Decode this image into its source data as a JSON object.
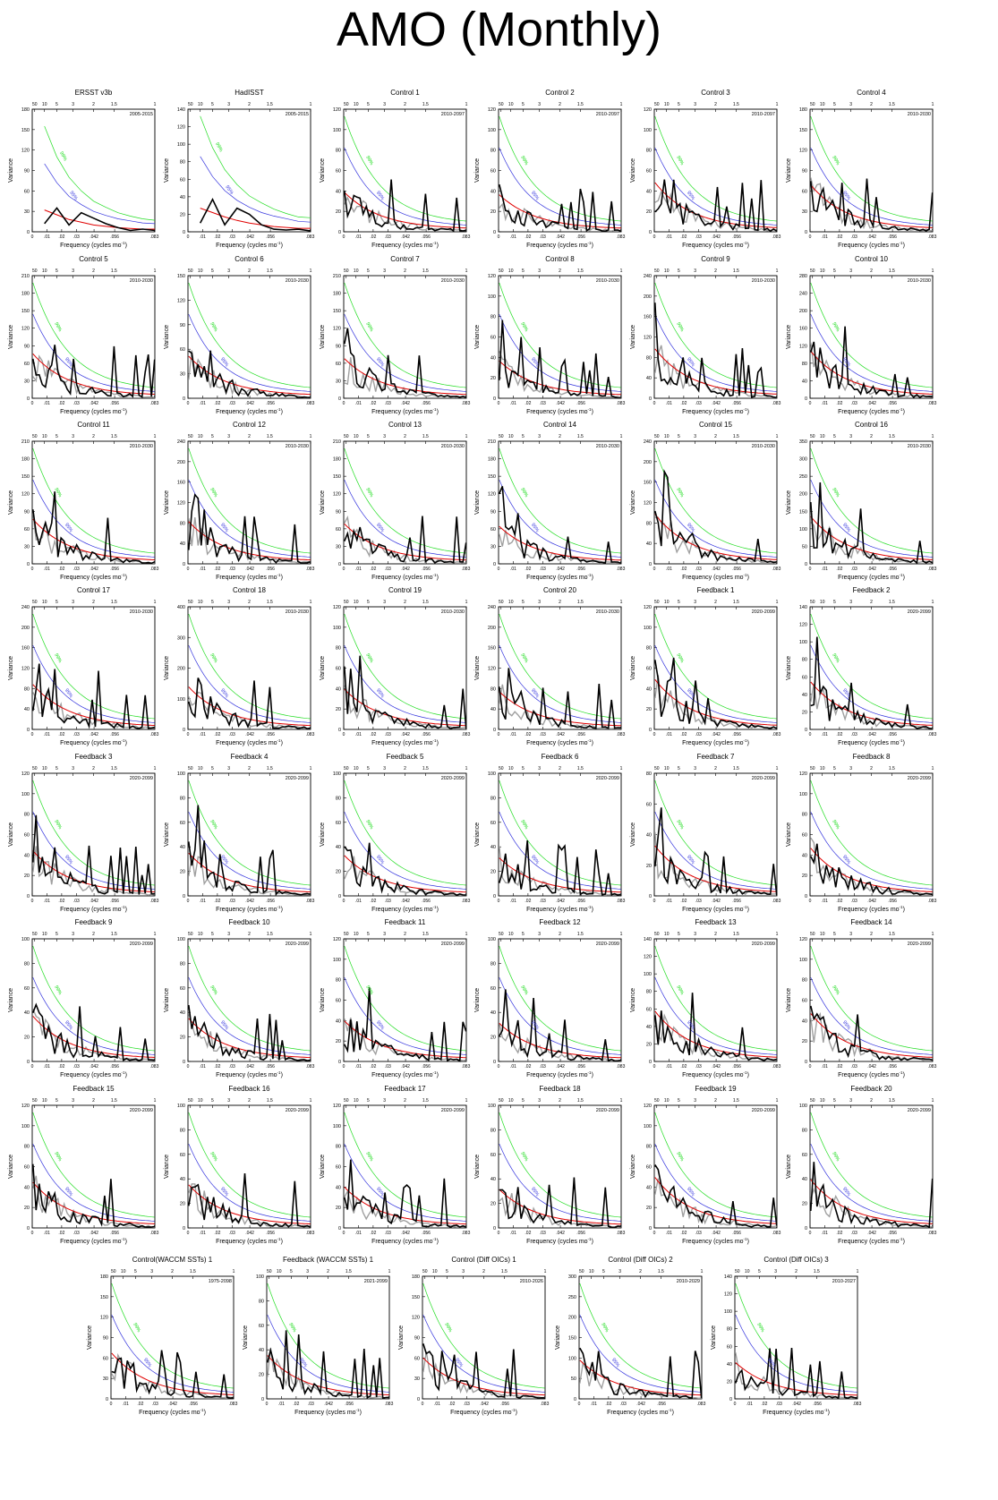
{
  "title": "AMO (Monthly)",
  "colors": {
    "spectrum": "#000000",
    "other_spectrum": "#a0a0a0",
    "red_noise": "#e00000",
    "ci95": "#3333dd",
    "ci99": "#22dd22"
  },
  "common": {
    "xlabel": "Frequency (cycles mo",
    "xlabel_sup": "-1",
    "xlabel_close": ")",
    "ylabel": "Variance",
    "x_ticks": [
      "0",
      ".01",
      ".02",
      ".03",
      ".042",
      ".056",
      ".083"
    ],
    "period_ticks": [
      "50",
      "10",
      "5",
      "3",
      "2",
      "1.5",
      "1"
    ],
    "ci95_label": "95%",
    "ci99_label": "99%"
  },
  "chart_data": [
    {
      "type": "line",
      "title": "ERSST v3b",
      "years": "2005-2015",
      "ylim": [
        0,
        180
      ],
      "yticks": [
        0,
        30,
        60,
        90,
        120,
        150,
        180
      ],
      "x": [
        0.0083,
        0.0167,
        0.025,
        0.0333,
        0.0417,
        0.05,
        0.0583,
        0.0667,
        0.075,
        0.0833
      ],
      "series": [
        {
          "role": "spectrum",
          "values": [
            12,
            35,
            10,
            28,
            20,
            12,
            6,
            2,
            4,
            2
          ]
        },
        {
          "role": "red-noise",
          "values": [
            32,
            25,
            18,
            14,
            10,
            8,
            6,
            5,
            4,
            4
          ]
        },
        {
          "role": "ci95",
          "values": [
            100,
            72,
            52,
            40,
            30,
            24,
            19,
            16,
            13,
            12
          ]
        },
        {
          "role": "ci99",
          "values": [
            155,
            110,
            80,
            60,
            45,
            36,
            28,
            23,
            19,
            17
          ]
        }
      ]
    },
    {
      "type": "line",
      "title": "HadISST",
      "years": "2005-2015",
      "ylim": [
        0,
        140
      ],
      "yticks": [
        0,
        20,
        40,
        60,
        80,
        100,
        120,
        140
      ],
      "x": [
        0.0083,
        0.0167,
        0.025,
        0.0333,
        0.0417,
        0.05,
        0.0583,
        0.0667,
        0.075,
        0.0833
      ],
      "series": [
        {
          "role": "spectrum",
          "values": [
            10,
            37,
            8,
            27,
            20,
            8,
            3,
            2,
            3,
            1
          ]
        },
        {
          "role": "red-noise",
          "values": [
            27,
            22,
            17,
            13,
            10,
            8,
            6,
            5,
            4,
            4
          ]
        },
        {
          "role": "ci95",
          "values": [
            86,
            63,
            47,
            36,
            28,
            22,
            18,
            15,
            12,
            11
          ]
        },
        {
          "role": "ci99",
          "values": [
            132,
            96,
            71,
            54,
            41,
            33,
            26,
            21,
            17,
            16
          ]
        }
      ]
    },
    {
      "type": "line",
      "title": "Control 1",
      "years": "2010-2097",
      "ylim": [
        0,
        120
      ],
      "yticks": [
        0,
        20,
        40,
        60,
        80,
        100,
        120
      ]
    },
    {
      "type": "line",
      "title": "Control 2",
      "years": "2010-2097",
      "ylim": [
        0,
        120
      ],
      "yticks": [
        0,
        20,
        40,
        60,
        80,
        100,
        120
      ]
    },
    {
      "type": "line",
      "title": "Control 3",
      "years": "2010-2097",
      "ylim": [
        0,
        120
      ],
      "yticks": [
        0,
        20,
        40,
        60,
        80,
        100,
        120
      ]
    },
    {
      "type": "line",
      "title": "Control 4",
      "years": "2010-2030",
      "ylim": [
        0,
        180
      ],
      "yticks": [
        0,
        30,
        60,
        90,
        120,
        150,
        180
      ]
    },
    {
      "type": "line",
      "title": "Control 5",
      "years": "2010-2030",
      "ylim": [
        0,
        210
      ],
      "yticks": [
        0,
        30,
        60,
        90,
        120,
        150,
        180,
        210
      ]
    },
    {
      "type": "line",
      "title": "Control 6",
      "years": "2010-2030",
      "ylim": [
        0,
        150
      ],
      "yticks": [
        0,
        30,
        60,
        90,
        120,
        150
      ]
    },
    {
      "type": "line",
      "title": "Control 7",
      "years": "2010-2030",
      "ylim": [
        0,
        210
      ],
      "yticks": [
        0,
        30,
        60,
        90,
        120,
        150,
        180,
        210
      ]
    },
    {
      "type": "line",
      "title": "Control 8",
      "years": "2010-2030",
      "ylim": [
        0,
        120
      ],
      "yticks": [
        0,
        20,
        40,
        60,
        80,
        100,
        120
      ]
    },
    {
      "type": "line",
      "title": "Control 9",
      "years": "2010-2030",
      "ylim": [
        0,
        240
      ],
      "yticks": [
        0,
        40,
        80,
        120,
        160,
        200,
        240
      ]
    },
    {
      "type": "line",
      "title": "Control 10",
      "years": "2010-2030",
      "ylim": [
        0,
        280
      ],
      "yticks": [
        0,
        40,
        80,
        120,
        160,
        200,
        240,
        280
      ]
    },
    {
      "type": "line",
      "title": "Control 11",
      "years": "2010-2030",
      "ylim": [
        0,
        210
      ],
      "yticks": [
        0,
        30,
        60,
        90,
        120,
        150,
        180,
        210
      ]
    },
    {
      "type": "line",
      "title": "Control 12",
      "years": "2010-2030",
      "ylim": [
        0,
        240
      ],
      "yticks": [
        0,
        40,
        80,
        120,
        160,
        200,
        240
      ]
    },
    {
      "type": "line",
      "title": "Control 13",
      "years": "2010-2030",
      "ylim": [
        0,
        210
      ],
      "yticks": [
        0,
        30,
        60,
        90,
        120,
        150,
        180,
        210
      ]
    },
    {
      "type": "line",
      "title": "Control 14",
      "years": "2010-2030",
      "ylim": [
        0,
        210
      ],
      "yticks": [
        0,
        30,
        60,
        90,
        120,
        150,
        180,
        210
      ]
    },
    {
      "type": "line",
      "title": "Control 15",
      "years": "2010-2030",
      "ylim": [
        0,
        240
      ],
      "yticks": [
        0,
        40,
        80,
        120,
        160,
        200,
        240
      ]
    },
    {
      "type": "line",
      "title": "Control 16",
      "years": "2010-2030",
      "ylim": [
        0,
        350
      ],
      "yticks": [
        0,
        50,
        100,
        150,
        200,
        250,
        300,
        350
      ]
    },
    {
      "type": "line",
      "title": "Control 17",
      "years": "2010-2030",
      "ylim": [
        0,
        240
      ],
      "yticks": [
        0,
        40,
        80,
        120,
        160,
        200,
        240
      ]
    },
    {
      "type": "line",
      "title": "Control 18",
      "years": "2010-2030",
      "ylim": [
        0,
        400
      ],
      "yticks": [
        0,
        100,
        200,
        300,
        400
      ]
    },
    {
      "type": "line",
      "title": "Control 19",
      "years": "2010-2030",
      "ylim": [
        0,
        120
      ],
      "yticks": [
        0,
        20,
        40,
        60,
        80,
        100,
        120
      ]
    },
    {
      "type": "line",
      "title": "Control 20",
      "years": "2010-2030",
      "ylim": [
        0,
        240
      ],
      "yticks": [
        0,
        40,
        80,
        120,
        160,
        200,
        240
      ]
    },
    {
      "type": "line",
      "title": "Feedback 1",
      "years": "2020-2099",
      "ylim": [
        0,
        120
      ],
      "yticks": [
        0,
        20,
        40,
        60,
        80,
        100,
        120
      ]
    },
    {
      "type": "line",
      "title": "Feedback 2",
      "years": "2020-2099",
      "ylim": [
        0,
        140
      ],
      "yticks": [
        0,
        20,
        40,
        60,
        80,
        100,
        120,
        140
      ]
    },
    {
      "type": "line",
      "title": "Feedback 3",
      "years": "2020-2099",
      "ylim": [
        0,
        120
      ],
      "yticks": [
        0,
        20,
        40,
        60,
        80,
        100,
        120
      ]
    },
    {
      "type": "line",
      "title": "Feedback 4",
      "years": "2020-2099",
      "ylim": [
        0,
        100
      ],
      "yticks": [
        0,
        20,
        40,
        60,
        80,
        100
      ]
    },
    {
      "type": "line",
      "title": "Feedback 5",
      "years": "2020-2099",
      "ylim": [
        0,
        100
      ],
      "yticks": [
        0,
        20,
        40,
        60,
        80,
        100
      ]
    },
    {
      "type": "line",
      "title": "Feedback 6",
      "years": "2020-2099",
      "ylim": [
        0,
        100
      ],
      "yticks": [
        0,
        20,
        40,
        60,
        80,
        100
      ]
    },
    {
      "type": "line",
      "title": "Feedback 7",
      "years": "2020-2099",
      "ylim": [
        0,
        80
      ],
      "yticks": [
        0,
        20,
        40,
        60,
        80
      ]
    },
    {
      "type": "line",
      "title": "Feedback 8",
      "years": "2020-2099",
      "ylim": [
        0,
        120
      ],
      "yticks": [
        0,
        20,
        40,
        60,
        80,
        100,
        120
      ]
    },
    {
      "type": "line",
      "title": "Feedback 9",
      "years": "2020-2099",
      "ylim": [
        0,
        100
      ],
      "yticks": [
        0,
        20,
        40,
        60,
        80,
        100
      ]
    },
    {
      "type": "line",
      "title": "Feedback 10",
      "years": "2020-2099",
      "ylim": [
        0,
        100
      ],
      "yticks": [
        0,
        20,
        40,
        60,
        80,
        100
      ]
    },
    {
      "type": "line",
      "title": "Feedback 11",
      "years": "2020-2099",
      "ylim": [
        0,
        120
      ],
      "yticks": [
        0,
        20,
        40,
        60,
        80,
        100,
        120
      ]
    },
    {
      "type": "line",
      "title": "Feedback 12",
      "years": "2020-2099",
      "ylim": [
        0,
        100
      ],
      "yticks": [
        0,
        20,
        40,
        60,
        80,
        100
      ]
    },
    {
      "type": "line",
      "title": "Feedback 13",
      "years": "2020-2099",
      "ylim": [
        0,
        140
      ],
      "yticks": [
        0,
        20,
        40,
        60,
        80,
        100,
        120,
        140
      ]
    },
    {
      "type": "line",
      "title": "Feedback 14",
      "years": "2020-2099",
      "ylim": [
        0,
        120
      ],
      "yticks": [
        0,
        20,
        40,
        60,
        80,
        100,
        120
      ]
    },
    {
      "type": "line",
      "title": "Feedback 15",
      "years": "2020-2099",
      "ylim": [
        0,
        120
      ],
      "yticks": [
        0,
        20,
        40,
        60,
        80,
        100,
        120
      ]
    },
    {
      "type": "line",
      "title": "Feedback 16",
      "years": "2020-2099",
      "ylim": [
        0,
        100
      ],
      "yticks": [
        0,
        20,
        40,
        60,
        80,
        100
      ]
    },
    {
      "type": "line",
      "title": "Feedback 17",
      "years": "2020-2099",
      "ylim": [
        0,
        120
      ],
      "yticks": [
        0,
        20,
        40,
        60,
        80,
        100,
        120
      ]
    },
    {
      "type": "line",
      "title": "Feedback 18",
      "years": "2020-2099",
      "ylim": [
        0,
        100
      ],
      "yticks": [
        0,
        20,
        40,
        60,
        80,
        100
      ]
    },
    {
      "type": "line",
      "title": "Feedback 19",
      "years": "2020-2099",
      "ylim": [
        0,
        120
      ],
      "yticks": [
        0,
        20,
        40,
        60,
        80,
        100,
        120
      ]
    },
    {
      "type": "line",
      "title": "Feedback 20",
      "years": "2020-2099",
      "ylim": [
        0,
        100
      ],
      "yticks": [
        0,
        20,
        40,
        60,
        80,
        100
      ]
    },
    {
      "type": "line",
      "title": "Control(WACCM SSTs) 1",
      "years": "1975-2098",
      "ylim": [
        0,
        180
      ],
      "yticks": [
        0,
        30,
        60,
        90,
        120,
        150,
        180
      ]
    },
    {
      "type": "line",
      "title": "Feedback (WACCM SSTs) 1",
      "years": "2021-2099",
      "ylim": [
        0,
        100
      ],
      "yticks": [
        0,
        20,
        40,
        60,
        80,
        100
      ]
    },
    {
      "type": "line",
      "title": "Control (Diff OICs) 1",
      "years": "2010-2026",
      "ylim": [
        0,
        180
      ],
      "yticks": [
        0,
        30,
        60,
        90,
        120,
        150,
        180
      ]
    },
    {
      "type": "line",
      "title": "Control (Diff OICs) 2",
      "years": "2010-2029",
      "ylim": [
        0,
        300
      ],
      "yticks": [
        0,
        50,
        100,
        150,
        200,
        250,
        300
      ]
    },
    {
      "type": "line",
      "title": "Control (Diff OICs) 3",
      "years": "2010-2027",
      "ylim": [
        0,
        140
      ],
      "yticks": [
        0,
        20,
        40,
        60,
        80,
        100,
        120,
        140
      ]
    }
  ]
}
